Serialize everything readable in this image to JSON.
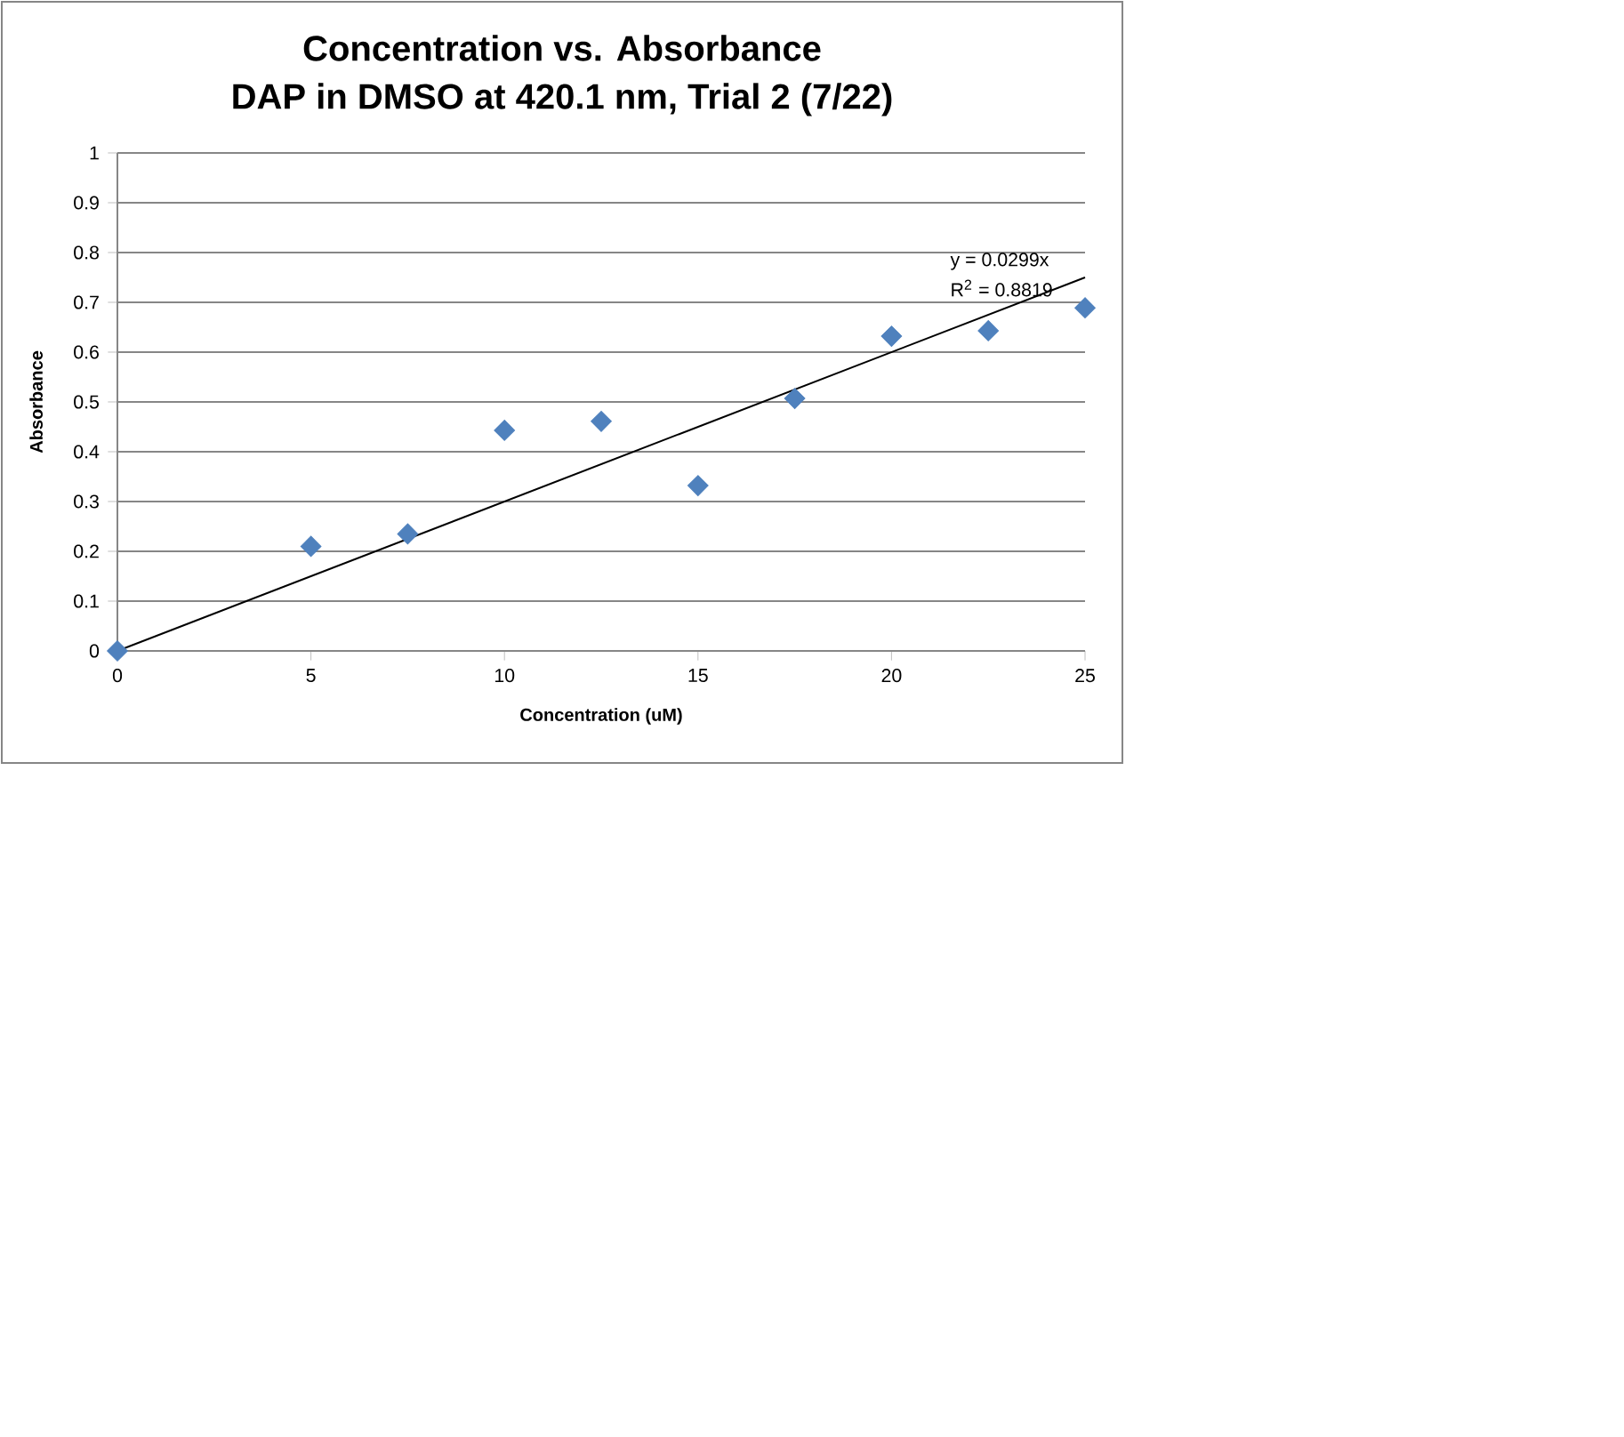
{
  "chart_data": {
    "type": "scatter",
    "title": "Concentration vs. Absorbance",
    "subtitle": "DAP in DMSO at 420.1 nm, Trial 2 (7/22)",
    "xlabel": "Concentration (uM)",
    "ylabel": "Absorbance",
    "series": [
      {
        "color": "#4f81bd",
        "marker": "diamond",
        "x": [
          0,
          5,
          7.5,
          10,
          12.5,
          15,
          17.5,
          20,
          22.5,
          25
        ],
        "values": [
          0,
          0.21,
          0.235,
          0.443,
          0.461,
          0.332,
          0.507,
          0.632,
          0.643,
          0.689
        ]
      },
      {
        "type": "line",
        "color": "#000000",
        "marker": "none",
        "line_style": "solid",
        "x": [
          0,
          25
        ],
        "values": [
          0,
          0.75
        ]
      }
    ],
    "annotations": [
      "y = 0.0299x",
      "R$^{2}$ = 0.8819"
    ],
    "xlim": [
      0,
      25
    ],
    "ylim": [
      0,
      1
    ],
    "xticks": [
      0,
      5,
      10,
      15,
      20,
      25
    ],
    "yticks": [
      0,
      0.1,
      0.2,
      0.3,
      0.4,
      0.5,
      0.6,
      0.7,
      0.8,
      0.9,
      1
    ],
    "grid": "y"
  }
}
